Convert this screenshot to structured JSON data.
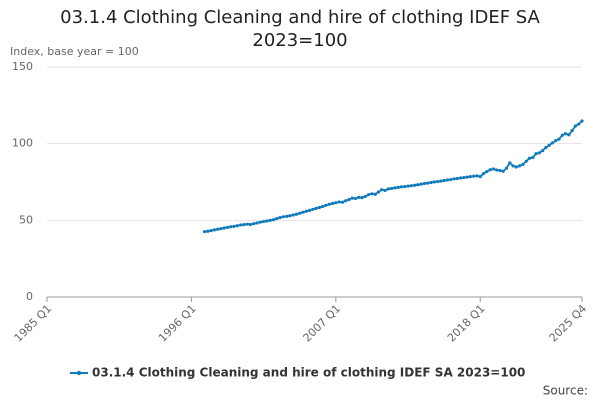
{
  "chart_data": {
    "type": "line",
    "title": "03.1.4 Clothing Cleaning and hire of clothing IDEF SA 2023=100",
    "y_label": "Index, base year = 100",
    "source": "Source:",
    "ylim": [
      0,
      150
    ],
    "yticks": [
      0,
      50,
      100,
      150
    ],
    "grid": true,
    "categories": [
      "1985 Q1",
      null,
      null,
      null,
      null,
      null,
      null,
      null,
      null,
      null,
      null,
      null,
      null,
      null,
      null,
      null,
      null,
      null,
      null,
      null,
      null,
      null,
      null,
      null,
      null,
      null,
      null,
      null,
      null,
      null,
      null,
      null,
      null,
      null,
      null,
      null,
      null,
      null,
      null,
      null,
      null,
      null,
      null,
      null,
      "1996 Q1",
      null,
      null,
      null,
      null,
      null,
      null,
      null,
      null,
      null,
      null,
      null,
      null,
      null,
      null,
      null,
      null,
      null,
      null,
      null,
      null,
      null,
      null,
      null,
      null,
      null,
      null,
      null,
      null,
      null,
      null,
      null,
      null,
      null,
      null,
      null,
      null,
      null,
      null,
      null,
      null,
      null,
      null,
      null,
      "2007 Q1",
      null,
      null,
      null,
      null,
      null,
      null,
      null,
      null,
      null,
      null,
      null,
      null,
      null,
      null,
      null,
      null,
      null,
      null,
      null,
      null,
      null,
      null,
      null,
      null,
      null,
      null,
      null,
      null,
      null,
      null,
      null,
      null,
      null,
      null,
      null,
      null,
      null,
      null,
      null,
      null,
      null,
      null,
      null,
      "2018 Q1",
      null,
      null,
      null,
      null,
      null,
      null,
      null,
      null,
      null,
      null,
      null,
      null,
      null,
      null,
      null,
      null,
      null,
      null,
      null,
      null,
      null,
      null,
      null,
      null,
      null,
      null,
      null,
      null,
      null,
      null,
      "2025 Q4"
    ],
    "series": [
      {
        "name": "03.1.4 Clothing Cleaning and hire of clothing IDEF SA 2023=100",
        "color": "#0f7bbd",
        "values": [
          null,
          null,
          null,
          null,
          null,
          null,
          null,
          null,
          null,
          null,
          null,
          null,
          null,
          null,
          null,
          null,
          null,
          null,
          null,
          null,
          null,
          null,
          null,
          null,
          null,
          null,
          null,
          null,
          null,
          null,
          null,
          null,
          null,
          null,
          null,
          null,
          null,
          null,
          null,
          null,
          null,
          null,
          null,
          null,
          null,
          null,
          null,
          null,
          42.6,
          42.9,
          43.3,
          43.8,
          44.2,
          44.6,
          45.0,
          45.4,
          45.8,
          46.1,
          46.5,
          47.0,
          47.2,
          47.5,
          47.3,
          47.8,
          48.3,
          48.8,
          49.2,
          49.6,
          50.0,
          50.4,
          51.1,
          51.8,
          52.3,
          52.6,
          53.0,
          53.5,
          54.0,
          54.6,
          55.3,
          55.9,
          56.5,
          57.2,
          57.8,
          58.4,
          59.0,
          59.8,
          60.5,
          61.0,
          61.5,
          62.0,
          61.8,
          62.8,
          63.5,
          64.5,
          64.2,
          65.0,
          64.8,
          65.6,
          66.8,
          67.3,
          67.0,
          68.5,
          70.0,
          69.5,
          70.5,
          70.8,
          71.2,
          71.5,
          71.8,
          72.0,
          72.3,
          72.6,
          72.9,
          73.2,
          73.6,
          74.0,
          74.3,
          74.7,
          75.0,
          75.3,
          75.6,
          76.0,
          76.3,
          76.6,
          77.0,
          77.3,
          77.6,
          77.9,
          78.2,
          78.5,
          78.8,
          79.0,
          78.5,
          80.5,
          81.8,
          83.0,
          83.5,
          82.8,
          82.5,
          82.0,
          84.0,
          87.5,
          85.5,
          84.8,
          85.5,
          86.5,
          88.5,
          90.5,
          91.0,
          93.5,
          94.0,
          95.5,
          97.5,
          99.0,
          100.5,
          102.0,
          103.0,
          105.5,
          106.5,
          105.8,
          108.5,
          111.5,
          112.8,
          114.8
        ]
      }
    ]
  }
}
